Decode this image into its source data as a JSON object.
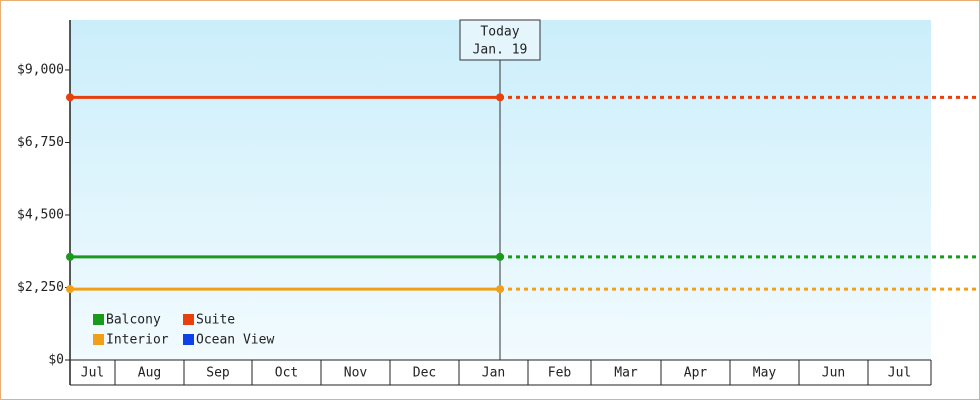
{
  "chart_data": {
    "type": "line",
    "categories": [
      "Jul",
      "Aug",
      "Sep",
      "Oct",
      "Nov",
      "Dec",
      "Jan",
      "Feb",
      "Mar",
      "Apr",
      "May",
      "Jun",
      "Jul"
    ],
    "x": [
      "Jul",
      "Jan. 19"
    ],
    "annotation": "Today",
    "series": [
      {
        "name": "Balcony",
        "color": "#1a9a1a",
        "values": [
          3200,
          3200
        ]
      },
      {
        "name": "Suite",
        "color": "#e8400c",
        "values": [
          8150,
          8150
        ]
      },
      {
        "name": "Interior",
        "color": "#f0a018",
        "values": [
          2200,
          2200
        ]
      },
      {
        "name": "Ocean View",
        "color": "#1040e8",
        "values": [
          null,
          null
        ]
      }
    ],
    "ylim": [
      0,
      10550
    ],
    "yticks": [
      {
        "value": 0,
        "label": "$0"
      },
      {
        "value": 2250,
        "label": "$2,250"
      },
      {
        "value": 4500,
        "label": "$4,500"
      },
      {
        "value": 6750,
        "label": "$6,750"
      },
      {
        "value": 9000,
        "label": "$9,000"
      }
    ],
    "grid": false
  }
}
